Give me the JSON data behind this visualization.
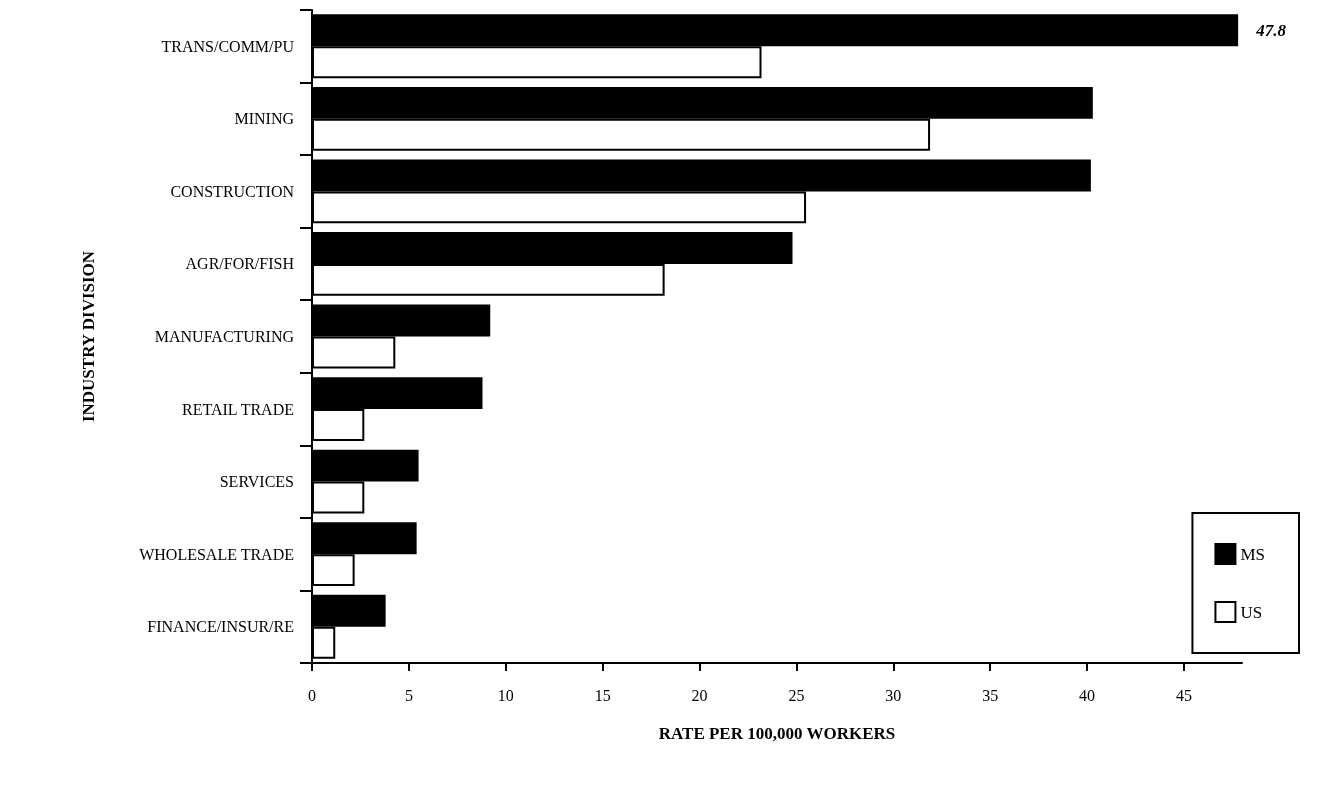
{
  "chart_data": {
    "type": "bar",
    "orientation": "horizontal",
    "xlabel": "RATE PER 100,000 WORKERS",
    "ylabel": "INDUSTRY DIVISION",
    "categories": [
      "TRANS/COMM/PU",
      "MINING",
      "CONSTRUCTION",
      "AGR/FOR/FISH",
      "MANUFACTURING",
      "RETAIL TRADE",
      "SERVICES",
      "WHOLESALE TRADE",
      "FINANCE/INSUR/RE"
    ],
    "series": [
      {
        "name": "MS",
        "color": "#000000",
        "values": [
          47.8,
          40.3,
          40.2,
          24.8,
          9.2,
          8.8,
          5.5,
          5.4,
          3.8
        ],
        "value_labels": [
          "47.8",
          null,
          null,
          null,
          null,
          null,
          null,
          null,
          null
        ]
      },
      {
        "name": "US",
        "color": "#ffffff",
        "values": [
          23.2,
          31.9,
          25.5,
          18.2,
          4.3,
          2.7,
          2.7,
          2.2,
          1.2
        ]
      }
    ],
    "xlim": [
      0,
      48
    ],
    "xticks": [
      0,
      5,
      10,
      15,
      20,
      25,
      30,
      35,
      40,
      45
    ],
    "grid": false,
    "legend": "bottom right"
  }
}
